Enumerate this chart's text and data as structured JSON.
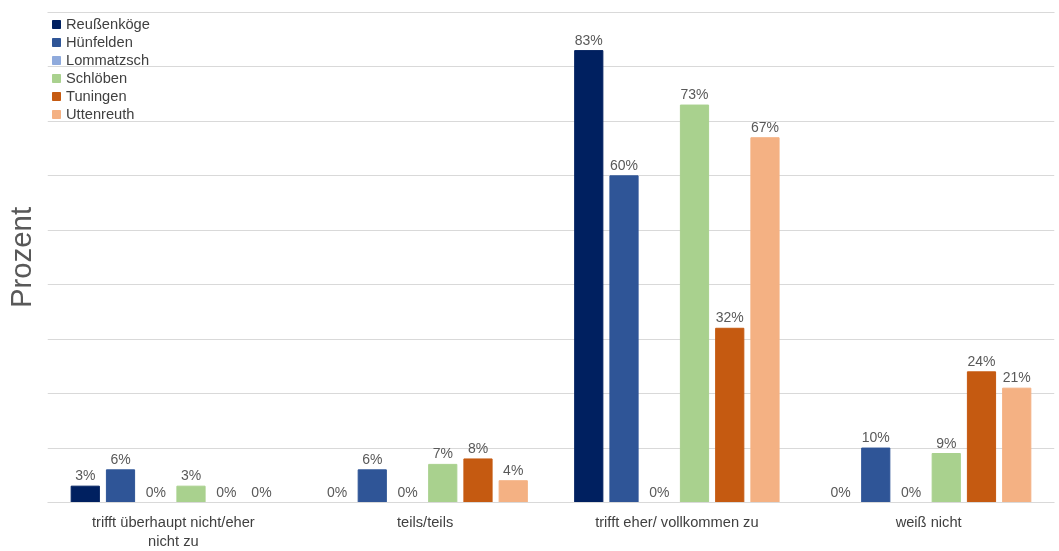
{
  "chart_data": {
    "type": "bar",
    "ylabel": "Prozent",
    "categories": [
      "trifft überhaupt nicht/eher nicht zu",
      "teils/teils",
      "trifft eher/ vollkommen zu",
      "weiß nicht"
    ],
    "series": [
      {
        "name": "Reußenköge",
        "color": "#002060",
        "values": [
          3,
          0,
          83,
          0
        ],
        "value_labels": [
          "3%",
          "0%",
          "83%",
          "0%"
        ]
      },
      {
        "name": "Hünfelden",
        "color": "#2f5597",
        "values": [
          6,
          6,
          60,
          10
        ],
        "value_labels": [
          "6%",
          "6%",
          "60%",
          "10%"
        ]
      },
      {
        "name": "Lommatzsch",
        "color": "#8faadc",
        "values": [
          0,
          0,
          0,
          0
        ],
        "value_labels": [
          "0%",
          "0%",
          "0%",
          "0%"
        ]
      },
      {
        "name": "Schlöben",
        "color": "#a9d18e",
        "values": [
          3,
          7,
          73,
          9
        ],
        "value_labels": [
          "3%",
          "7%",
          "73%",
          "9%"
        ]
      },
      {
        "name": "Tuningen",
        "color": "#c55a11",
        "values": [
          0,
          8,
          32,
          24
        ],
        "value_labels": [
          "0%",
          "8%",
          "32%",
          "24%"
        ]
      },
      {
        "name": "Uttenreuth",
        "color": "#f4b183",
        "values": [
          0,
          4,
          67,
          21
        ],
        "value_labels": [
          "0%",
          "4%",
          "67%",
          "21%"
        ]
      }
    ],
    "ylim": [
      0,
      90
    ],
    "yticks": [
      {
        "value": 0,
        "label": null
      },
      {
        "value": 10,
        "label": null
      },
      {
        "value": 20,
        "label": null
      },
      {
        "value": 30,
        "label": null
      },
      {
        "value": 40,
        "label": null
      },
      {
        "value": 50,
        "label": null
      },
      {
        "value": 60,
        "label": null
      },
      {
        "value": 70,
        "label": null
      },
      {
        "value": 80,
        "label": null
      },
      {
        "value": 90,
        "label": null
      }
    ],
    "tick_labels": "x",
    "grid": "y",
    "legend": "top left"
  }
}
